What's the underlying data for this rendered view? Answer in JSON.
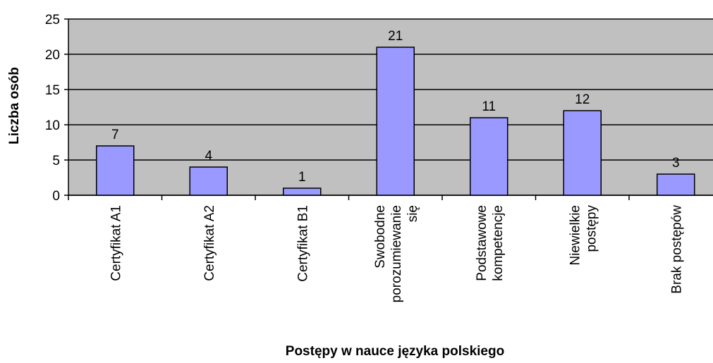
{
  "chart_data": {
    "type": "bar",
    "xlabel": "Postępy w nauce języka polskiego",
    "ylabel": "Liczba osób",
    "categories": [
      "Certyfikat A1",
      "Certyfikat A2",
      "Certyfikat B1",
      "Swobodne porozumiewanie się",
      "Podstawowe kompetencje",
      "Niewielkie postępy",
      "Brak postępów"
    ],
    "values": [
      7,
      4,
      1,
      21,
      11,
      12,
      3
    ],
    "color": "#9999ff",
    "ylim": [
      0,
      25
    ],
    "yticks": [
      0,
      5,
      10,
      15,
      20,
      25
    ],
    "grid": true
  }
}
